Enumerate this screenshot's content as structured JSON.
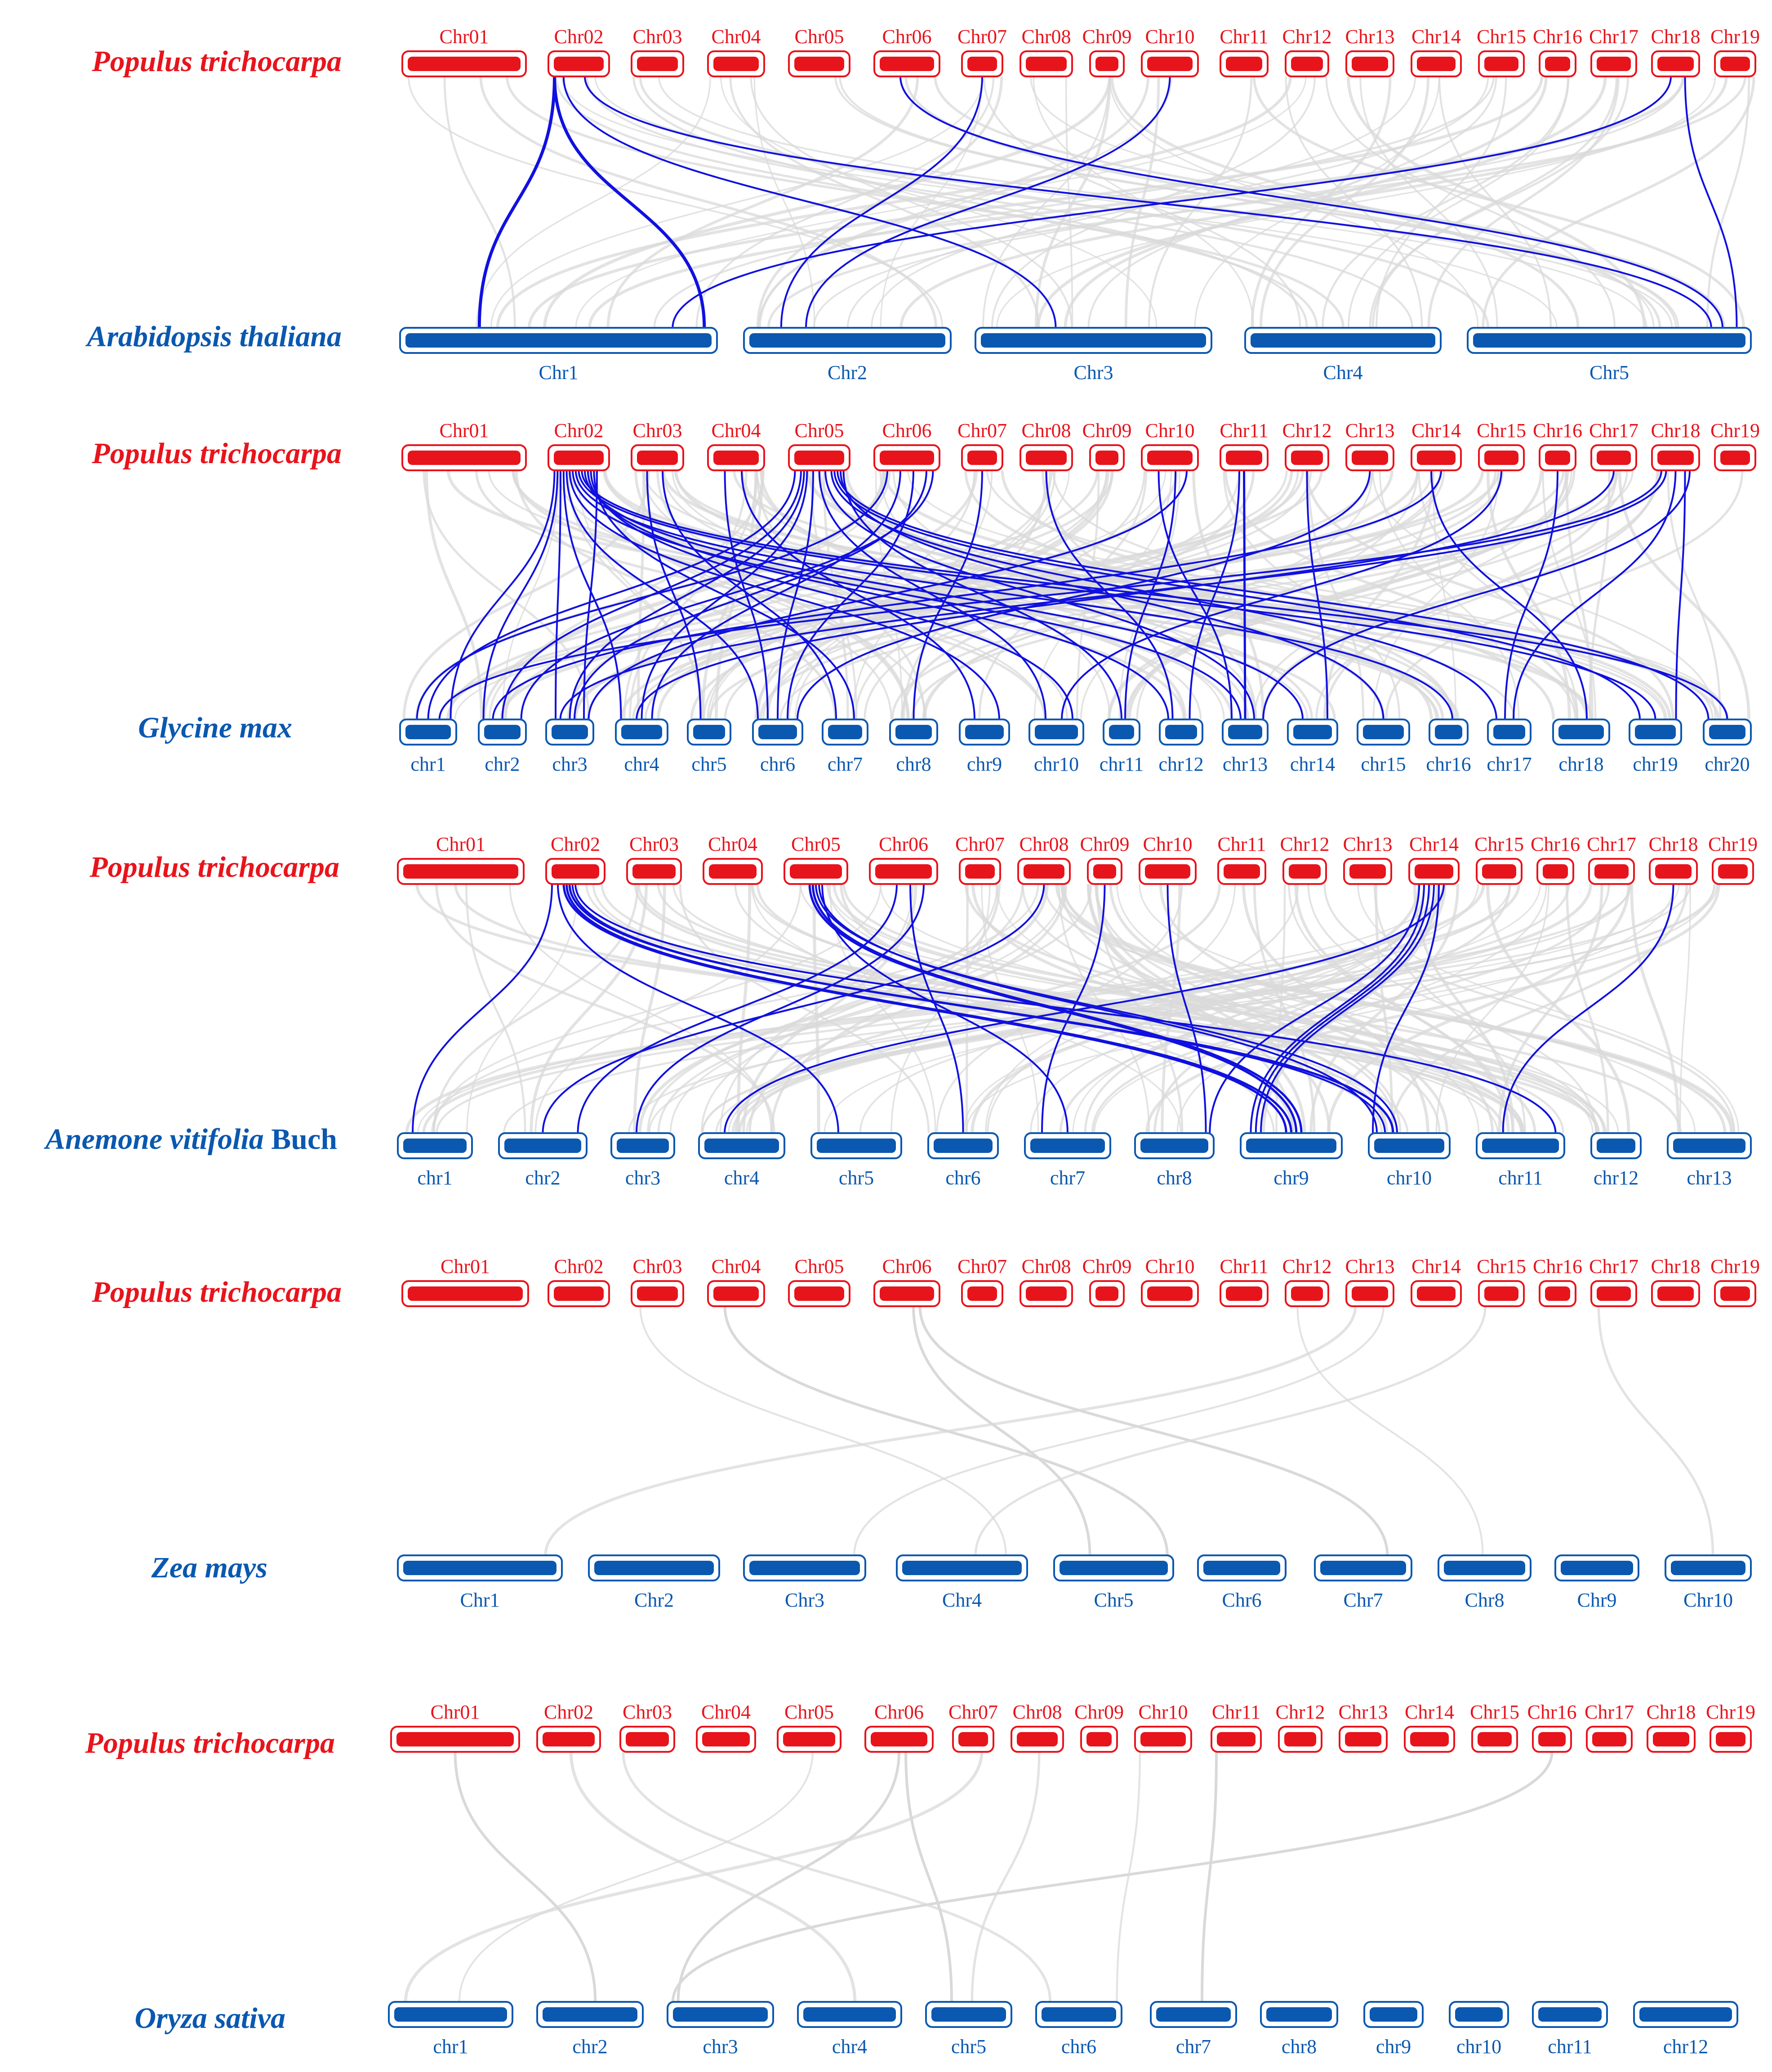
{
  "colors": {
    "reference": "#e8141c",
    "target": "#0a58b0",
    "synteny_highlight": "#1010e0",
    "synteny_background": "#d9d9d9"
  },
  "panels": [
    {
      "id": "arabidopsis",
      "reference": {
        "species": "Populus trichocarpa",
        "chromosomes": [
          "Chr01",
          "Chr02",
          "Chr03",
          "Chr04",
          "Chr05",
          "Chr06",
          "Chr07",
          "Chr08",
          "Chr09",
          "Chr10",
          "Chr11",
          "Chr12",
          "Chr13",
          "Chr14",
          "Chr15",
          "Chr16",
          "Chr17",
          "Chr18",
          "Chr19"
        ]
      },
      "target": {
        "species": "Arabidopsis thaliana",
        "species_suffix": "",
        "chromosomes": [
          "Chr1",
          "Chr2",
          "Chr3",
          "Chr4",
          "Chr5"
        ]
      }
    },
    {
      "id": "glycine",
      "reference": {
        "species": "Populus trichocarpa",
        "chromosomes": [
          "Chr01",
          "Chr02",
          "Chr03",
          "Chr04",
          "Chr05",
          "Chr06",
          "Chr07",
          "Chr08",
          "Chr09",
          "Chr10",
          "Chr11",
          "Chr12",
          "Chr13",
          "Chr14",
          "Chr15",
          "Chr16",
          "Chr17",
          "Chr18",
          "Chr19"
        ]
      },
      "target": {
        "species": "Glycine max",
        "species_suffix": "",
        "chromosomes": [
          "chr1",
          "chr2",
          "chr3",
          "chr4",
          "chr5",
          "chr6",
          "chr7",
          "chr8",
          "chr9",
          "chr10",
          "chr11",
          "chr12",
          "chr13",
          "chr14",
          "chr15",
          "chr16",
          "chr17",
          "chr18",
          "chr19",
          "chr20"
        ]
      }
    },
    {
      "id": "anemone",
      "reference": {
        "species": "Populus trichocarpa",
        "chromosomes": [
          "Chr01",
          "Chr02",
          "Chr03",
          "Chr04",
          "Chr05",
          "Chr06",
          "Chr07",
          "Chr08",
          "Chr09",
          "Chr10",
          "Chr11",
          "Chr12",
          "Chr13",
          "Chr14",
          "Chr15",
          "Chr16",
          "Chr17",
          "Chr18",
          "Chr19"
        ]
      },
      "target": {
        "species": "Anemone vitifolia",
        "species_suffix": " Buch",
        "chromosomes": [
          "chr1",
          "chr2",
          "chr3",
          "chr4",
          "chr5",
          "chr6",
          "chr7",
          "chr8",
          "chr9",
          "chr10",
          "chr11",
          "chr12",
          "chr13"
        ]
      }
    },
    {
      "id": "zea",
      "reference": {
        "species": "Populus trichocarpa",
        "chromosomes": [
          "Chr01",
          "Chr02",
          "Chr03",
          "Chr04",
          "Chr05",
          "Chr06",
          "Chr07",
          "Chr08",
          "Chr09",
          "Chr10",
          "Chr11",
          "Chr12",
          "Chr13",
          "Chr14",
          "Chr15",
          "Chr16",
          "Chr17",
          "Chr18",
          "Chr19"
        ]
      },
      "target": {
        "species": "Zea mays",
        "species_suffix": "",
        "chromosomes": [
          "Chr1",
          "Chr2",
          "Chr3",
          "Chr4",
          "Chr5",
          "Chr6",
          "Chr7",
          "Chr8",
          "Chr9",
          "Chr10"
        ]
      }
    },
    {
      "id": "oryza",
      "reference": {
        "species": "Populus trichocarpa",
        "chromosomes": [
          "Chr01",
          "Chr02",
          "Chr03",
          "Chr04",
          "Chr05",
          "Chr06",
          "Chr07",
          "Chr08",
          "Chr09",
          "Chr10",
          "Chr11",
          "Chr12",
          "Chr13",
          "Chr14",
          "Chr15",
          "Chr16",
          "Chr17",
          "Chr18",
          "Chr19"
        ]
      },
      "target": {
        "species": "Oryza sativa",
        "species_suffix": "",
        "chromosomes": [
          "chr1",
          "chr2",
          "chr3",
          "chr4",
          "chr5",
          "chr6",
          "chr7",
          "chr8",
          "chr9",
          "chr10",
          "chr11",
          "chr12"
        ]
      }
    }
  ]
}
